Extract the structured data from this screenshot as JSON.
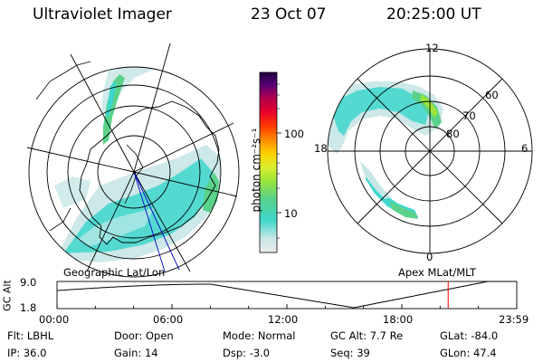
{
  "header": {
    "instrument": "Ultraviolet Imager",
    "date": "23 Oct 07",
    "time": "20:25:00 UT"
  },
  "colorbar": {
    "unit_label": "photon cm⁻²s⁻¹",
    "tick_labels": [
      "100",
      "10"
    ],
    "scale": "log",
    "colors": [
      "#ececec",
      "#c8e6e6",
      "#3ed6cc",
      "#5ad28a",
      "#9be53a",
      "#d8f030",
      "#ffd000",
      "#ff9000",
      "#ff3b00",
      "#e8002a",
      "#b00050",
      "#5a0078",
      "#1e0040"
    ]
  },
  "left_map": {
    "label": "Geographic Lat/Lon",
    "aurora_colors": [
      "#3ed6cc",
      "#a8e6e2",
      "#5ad28a"
    ]
  },
  "right_map": {
    "label": "Apex  MLat/MLT",
    "mlt_labels": {
      "top": "12",
      "bottom": "0",
      "left": "18",
      "right": "6"
    },
    "lat_labels": [
      "60",
      "70",
      "80"
    ]
  },
  "alt_plot": {
    "ylabel": "GC Alt",
    "ytick_top": "9.0",
    "ytick_bottom": "1.8",
    "xticks": [
      "00:00",
      "06:00",
      "12:00",
      "18:00",
      "23:59"
    ],
    "current_marker_hours": 20.42,
    "marker_color": "#ff0000"
  },
  "info": {
    "row1": [
      {
        "label": "Flt:",
        "value": "LBHL"
      },
      {
        "label": "Door:",
        "value": "Open"
      },
      {
        "label": "Mode:",
        "value": "Normal"
      },
      {
        "label": "GC Alt:",
        "value": "7.7 Re"
      },
      {
        "label": "GLat:",
        "value": "-84.0"
      }
    ],
    "row2": [
      {
        "label": "IP:",
        "value": "36.0"
      },
      {
        "label": "Gain:",
        "value": "14"
      },
      {
        "label": "Dsp:",
        "value": "-3.0"
      },
      {
        "label": "Seq:",
        "value": "39"
      },
      {
        "label": "GLon:",
        "value": "47.4"
      }
    ]
  }
}
